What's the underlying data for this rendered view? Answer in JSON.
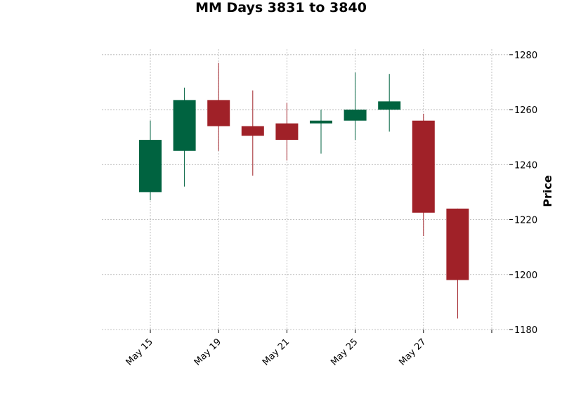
{
  "chart_data": {
    "type": "candlestick",
    "title": "MM Days 3831 to 3840",
    "xlabel": "",
    "ylabel": "Price",
    "ylim": [
      1180,
      1282
    ],
    "yticks": [
      1180,
      1200,
      1220,
      1240,
      1260,
      1280
    ],
    "grid": true,
    "y_axis_side": "right",
    "colors": {
      "up": "#006340",
      "down": "#a02128",
      "grid": "#b0b0b0"
    },
    "xtick_labels": [
      "May 15",
      "May 19",
      "May 21",
      "May 25",
      "May 27",
      ""
    ],
    "xtick_positions": [
      0,
      2,
      4,
      6,
      8,
      10
    ],
    "candles": [
      {
        "index": 0,
        "open": 1230,
        "high": 1256,
        "low": 1227,
        "close": 1249
      },
      {
        "index": 1,
        "open": 1245,
        "high": 1268,
        "low": 1232,
        "close": 1263.5
      },
      {
        "index": 2,
        "open": 1263.5,
        "high": 1277,
        "low": 1245,
        "close": 1254
      },
      {
        "index": 3,
        "open": 1254,
        "high": 1267,
        "low": 1236,
        "close": 1250.5
      },
      {
        "index": 4,
        "open": 1255,
        "high": 1262.5,
        "low": 1241.5,
        "close": 1249
      },
      {
        "index": 5,
        "open": 1255,
        "high": 1260,
        "low": 1244,
        "close": 1256
      },
      {
        "index": 6,
        "open": 1256,
        "high": 1273.5,
        "low": 1249,
        "close": 1260
      },
      {
        "index": 7,
        "open": 1260,
        "high": 1273,
        "low": 1252,
        "close": 1263
      },
      {
        "index": 8,
        "open": 1256,
        "high": 1258.5,
        "low": 1214,
        "close": 1222.5
      },
      {
        "index": 9,
        "open": 1224,
        "high": 1224,
        "low": 1184,
        "close": 1198
      }
    ]
  }
}
